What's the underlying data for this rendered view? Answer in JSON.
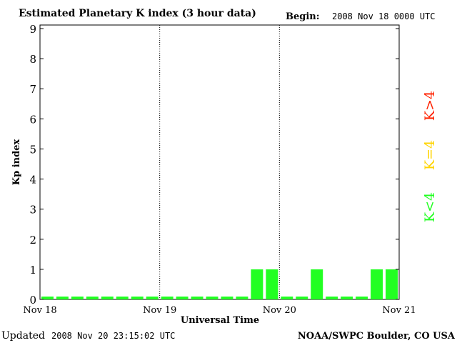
{
  "chart_data": {
    "type": "bar",
    "title": "Estimated Planetary K index (3 hour data)",
    "begin_label": "Begin:",
    "begin_value": "2008 Nov 18 0000 UTC",
    "xlabel": "Universal Time",
    "ylabel": "Kp index",
    "ylim": [
      0,
      9
    ],
    "yticks": [
      "0",
      "1",
      "2",
      "3",
      "4",
      "5",
      "6",
      "7",
      "8",
      "9"
    ],
    "xticks": [
      "Nov 18",
      "Nov 19",
      "Nov 20",
      "Nov 21"
    ],
    "values": [
      0,
      0,
      0,
      0,
      0,
      0,
      0,
      0,
      0,
      0,
      0,
      0,
      0,
      0,
      1,
      1,
      0,
      0,
      1,
      0,
      0,
      0,
      1,
      1
    ],
    "legend": [
      {
        "label": "K<4",
        "color": "#22ff22"
      },
      {
        "label": "K=4",
        "color": "#ffd400"
      },
      {
        "label": "K>4",
        "color": "#ff2200"
      }
    ],
    "bar_color": "#22ff22",
    "footer_left_label": "Updated",
    "footer_left_value": "2008 Nov 20 23:15:02 UTC",
    "footer_right": "NOAA/SWPC Boulder, CO USA"
  }
}
